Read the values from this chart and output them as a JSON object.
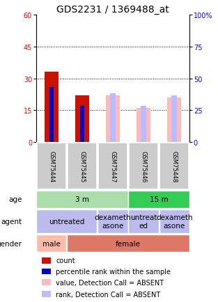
{
  "title": "GDS2231 / 1369488_at",
  "samples": [
    "GSM75444",
    "GSM75445",
    "GSM75447",
    "GSM75446",
    "GSM75448"
  ],
  "left_ylim": [
    0,
    60
  ],
  "right_ylim": [
    0,
    100
  ],
  "left_yticks": [
    0,
    15,
    30,
    45,
    60
  ],
  "right_yticks": [
    0,
    25,
    50,
    75,
    100
  ],
  "right_yticklabels": [
    "0",
    "25",
    "50",
    "75",
    "100%"
  ],
  "count_values": [
    33,
    22,
    0,
    0,
    0
  ],
  "percentile_values": [
    26,
    17,
    0,
    0,
    0
  ],
  "value_absent": [
    0,
    0,
    22,
    16,
    21
  ],
  "rank_absent": [
    0,
    0,
    23,
    17,
    22
  ],
  "bar_width": 0.45,
  "bar_colors": {
    "count": "#cc1100",
    "percentile": "#0000cc",
    "value_absent": "#ffbbbb",
    "rank_absent": "#bbbbff"
  },
  "grid_color": "#666666",
  "annotation_rows": [
    {
      "label": "age",
      "cells": [
        {
          "text": "3 m",
          "span": 3,
          "color": "#aaeea a"
        },
        {
          "text": "15 m",
          "span": 2,
          "color": "#33cc55"
        }
      ]
    },
    {
      "label": "agent",
      "cells": [
        {
          "text": "untreated",
          "span": 2,
          "color": "#bbbbee"
        },
        {
          "text": "dexameth\nasone",
          "span": 1,
          "color": "#bbbbee"
        },
        {
          "text": "untreat\ned",
          "span": 1,
          "color": "#bbbbee"
        },
        {
          "text": "dexameth\nasone",
          "span": 1,
          "color": "#bbbbee"
        }
      ]
    },
    {
      "label": "gender",
      "cells": [
        {
          "text": "male",
          "span": 1,
          "color": "#ffbbaa"
        },
        {
          "text": "female",
          "span": 4,
          "color": "#dd7766"
        }
      ]
    }
  ],
  "age_colors": [
    "#aaddaa",
    "#33bb55"
  ],
  "agent_color": "#bbbbee",
  "gender_colors": [
    "#ffbbaa",
    "#dd8877"
  ],
  "legend_items": [
    {
      "color": "#cc1100",
      "label": "count"
    },
    {
      "color": "#0000cc",
      "label": "percentile rank within the sample"
    },
    {
      "color": "#ffbbbb",
      "label": "value, Detection Call = ABSENT"
    },
    {
      "color": "#bbbbff",
      "label": "rank, Detection Call = ABSENT"
    }
  ],
  "sample_bg_color": "#cccccc",
  "title_fontsize": 10,
  "tick_fontsize": 7,
  "annotation_fontsize": 7.5,
  "legend_fontsize": 7
}
